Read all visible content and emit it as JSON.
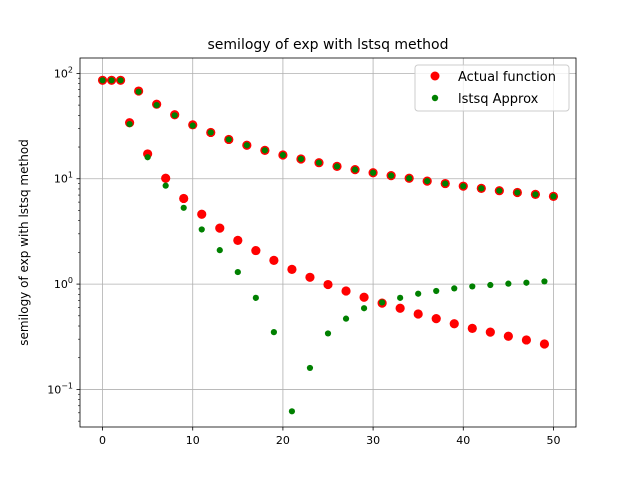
{
  "chart_data": {
    "type": "scatter",
    "title": "semilogy of exp with lstsq method",
    "xlabel": "",
    "ylabel": "semilogy of exp with lstsq method",
    "yscale": "log",
    "xlim": [
      -2.5,
      52.5
    ],
    "ylim": [
      0.044,
      140
    ],
    "grid": true,
    "legend": "top-right",
    "x_ticks": [
      {
        "v": 0,
        "label": "0"
      },
      {
        "v": 10,
        "label": "10"
      },
      {
        "v": 20,
        "label": "20"
      },
      {
        "v": 30,
        "label": "30"
      },
      {
        "v": 40,
        "label": "40"
      },
      {
        "v": 50,
        "label": "50"
      }
    ],
    "y_ticks": [
      {
        "v": 0.1,
        "base": "10",
        "exp": "−1"
      },
      {
        "v": 1,
        "base": "10",
        "exp": "0"
      },
      {
        "v": 10,
        "base": "10",
        "exp": "1"
      },
      {
        "v": 100,
        "base": "10",
        "exp": "2"
      }
    ],
    "series": [
      {
        "name": "Actual function",
        "color": "#ff0000",
        "marker": "large-dot",
        "points": [
          [
            0,
            86
          ],
          [
            1,
            86
          ],
          [
            2,
            86
          ],
          [
            3,
            34
          ],
          [
            4,
            68
          ],
          [
            5,
            17.2
          ],
          [
            6,
            51
          ],
          [
            7,
            10.1
          ],
          [
            8,
            40.5
          ],
          [
            9,
            6.5
          ],
          [
            10,
            32.5
          ],
          [
            11,
            4.6
          ],
          [
            12,
            27.5
          ],
          [
            13,
            3.4
          ],
          [
            14,
            23.6
          ],
          [
            15,
            2.6
          ],
          [
            16,
            20.8
          ],
          [
            17,
            2.08
          ],
          [
            18,
            18.6
          ],
          [
            19,
            1.68
          ],
          [
            20,
            16.8
          ],
          [
            21,
            1.38
          ],
          [
            22,
            15.4
          ],
          [
            23,
            1.16
          ],
          [
            24,
            14.2
          ],
          [
            25,
            0.99
          ],
          [
            26,
            13.1
          ],
          [
            27,
            0.86
          ],
          [
            28,
            12.2
          ],
          [
            29,
            0.75
          ],
          [
            30,
            11.4
          ],
          [
            31,
            0.66
          ],
          [
            32,
            10.7
          ],
          [
            33,
            0.59
          ],
          [
            34,
            10.1
          ],
          [
            35,
            0.52
          ],
          [
            36,
            9.5
          ],
          [
            37,
            0.47
          ],
          [
            38,
            9.0
          ],
          [
            39,
            0.42
          ],
          [
            40,
            8.5
          ],
          [
            41,
            0.38
          ],
          [
            42,
            8.1
          ],
          [
            43,
            0.35
          ],
          [
            44,
            7.7
          ],
          [
            45,
            0.32
          ],
          [
            46,
            7.4
          ],
          [
            47,
            0.295
          ],
          [
            48,
            7.1
          ],
          [
            49,
            0.27
          ],
          [
            50,
            6.8
          ]
        ]
      },
      {
        "name": "lstsq Approx",
        "color": "#008000",
        "marker": "small-dot",
        "points": [
          [
            0,
            86
          ],
          [
            1,
            86
          ],
          [
            2,
            86
          ],
          [
            3,
            33
          ],
          [
            4,
            67
          ],
          [
            5,
            16
          ],
          [
            6,
            50
          ],
          [
            7,
            8.6
          ],
          [
            8,
            40
          ],
          [
            9,
            5.3
          ],
          [
            10,
            32
          ],
          [
            11,
            3.3
          ],
          [
            12,
            27.5
          ],
          [
            13,
            2.1
          ],
          [
            14,
            23.6
          ],
          [
            15,
            1.3
          ],
          [
            16,
            20.8
          ],
          [
            17,
            0.74
          ],
          [
            18,
            18.6
          ],
          [
            19,
            0.35
          ],
          [
            20,
            16.8
          ],
          [
            21,
            0.062
          ],
          [
            22,
            15.4
          ],
          [
            23,
            0.16
          ],
          [
            24,
            14.2
          ],
          [
            25,
            0.34
          ],
          [
            26,
            13.1
          ],
          [
            27,
            0.47
          ],
          [
            28,
            12.2
          ],
          [
            29,
            0.59
          ],
          [
            30,
            11.4
          ],
          [
            31,
            0.67
          ],
          [
            32,
            10.7
          ],
          [
            33,
            0.74
          ],
          [
            34,
            10.1
          ],
          [
            35,
            0.81
          ],
          [
            36,
            9.5
          ],
          [
            37,
            0.86
          ],
          [
            38,
            9.0
          ],
          [
            39,
            0.91
          ],
          [
            40,
            8.5
          ],
          [
            41,
            0.95
          ],
          [
            42,
            8.1
          ],
          [
            43,
            0.98
          ],
          [
            44,
            7.7
          ],
          [
            45,
            1.01
          ],
          [
            46,
            7.4
          ],
          [
            47,
            1.03
          ],
          [
            48,
            7.1
          ],
          [
            49,
            1.06
          ],
          [
            50,
            6.8
          ]
        ]
      }
    ]
  }
}
